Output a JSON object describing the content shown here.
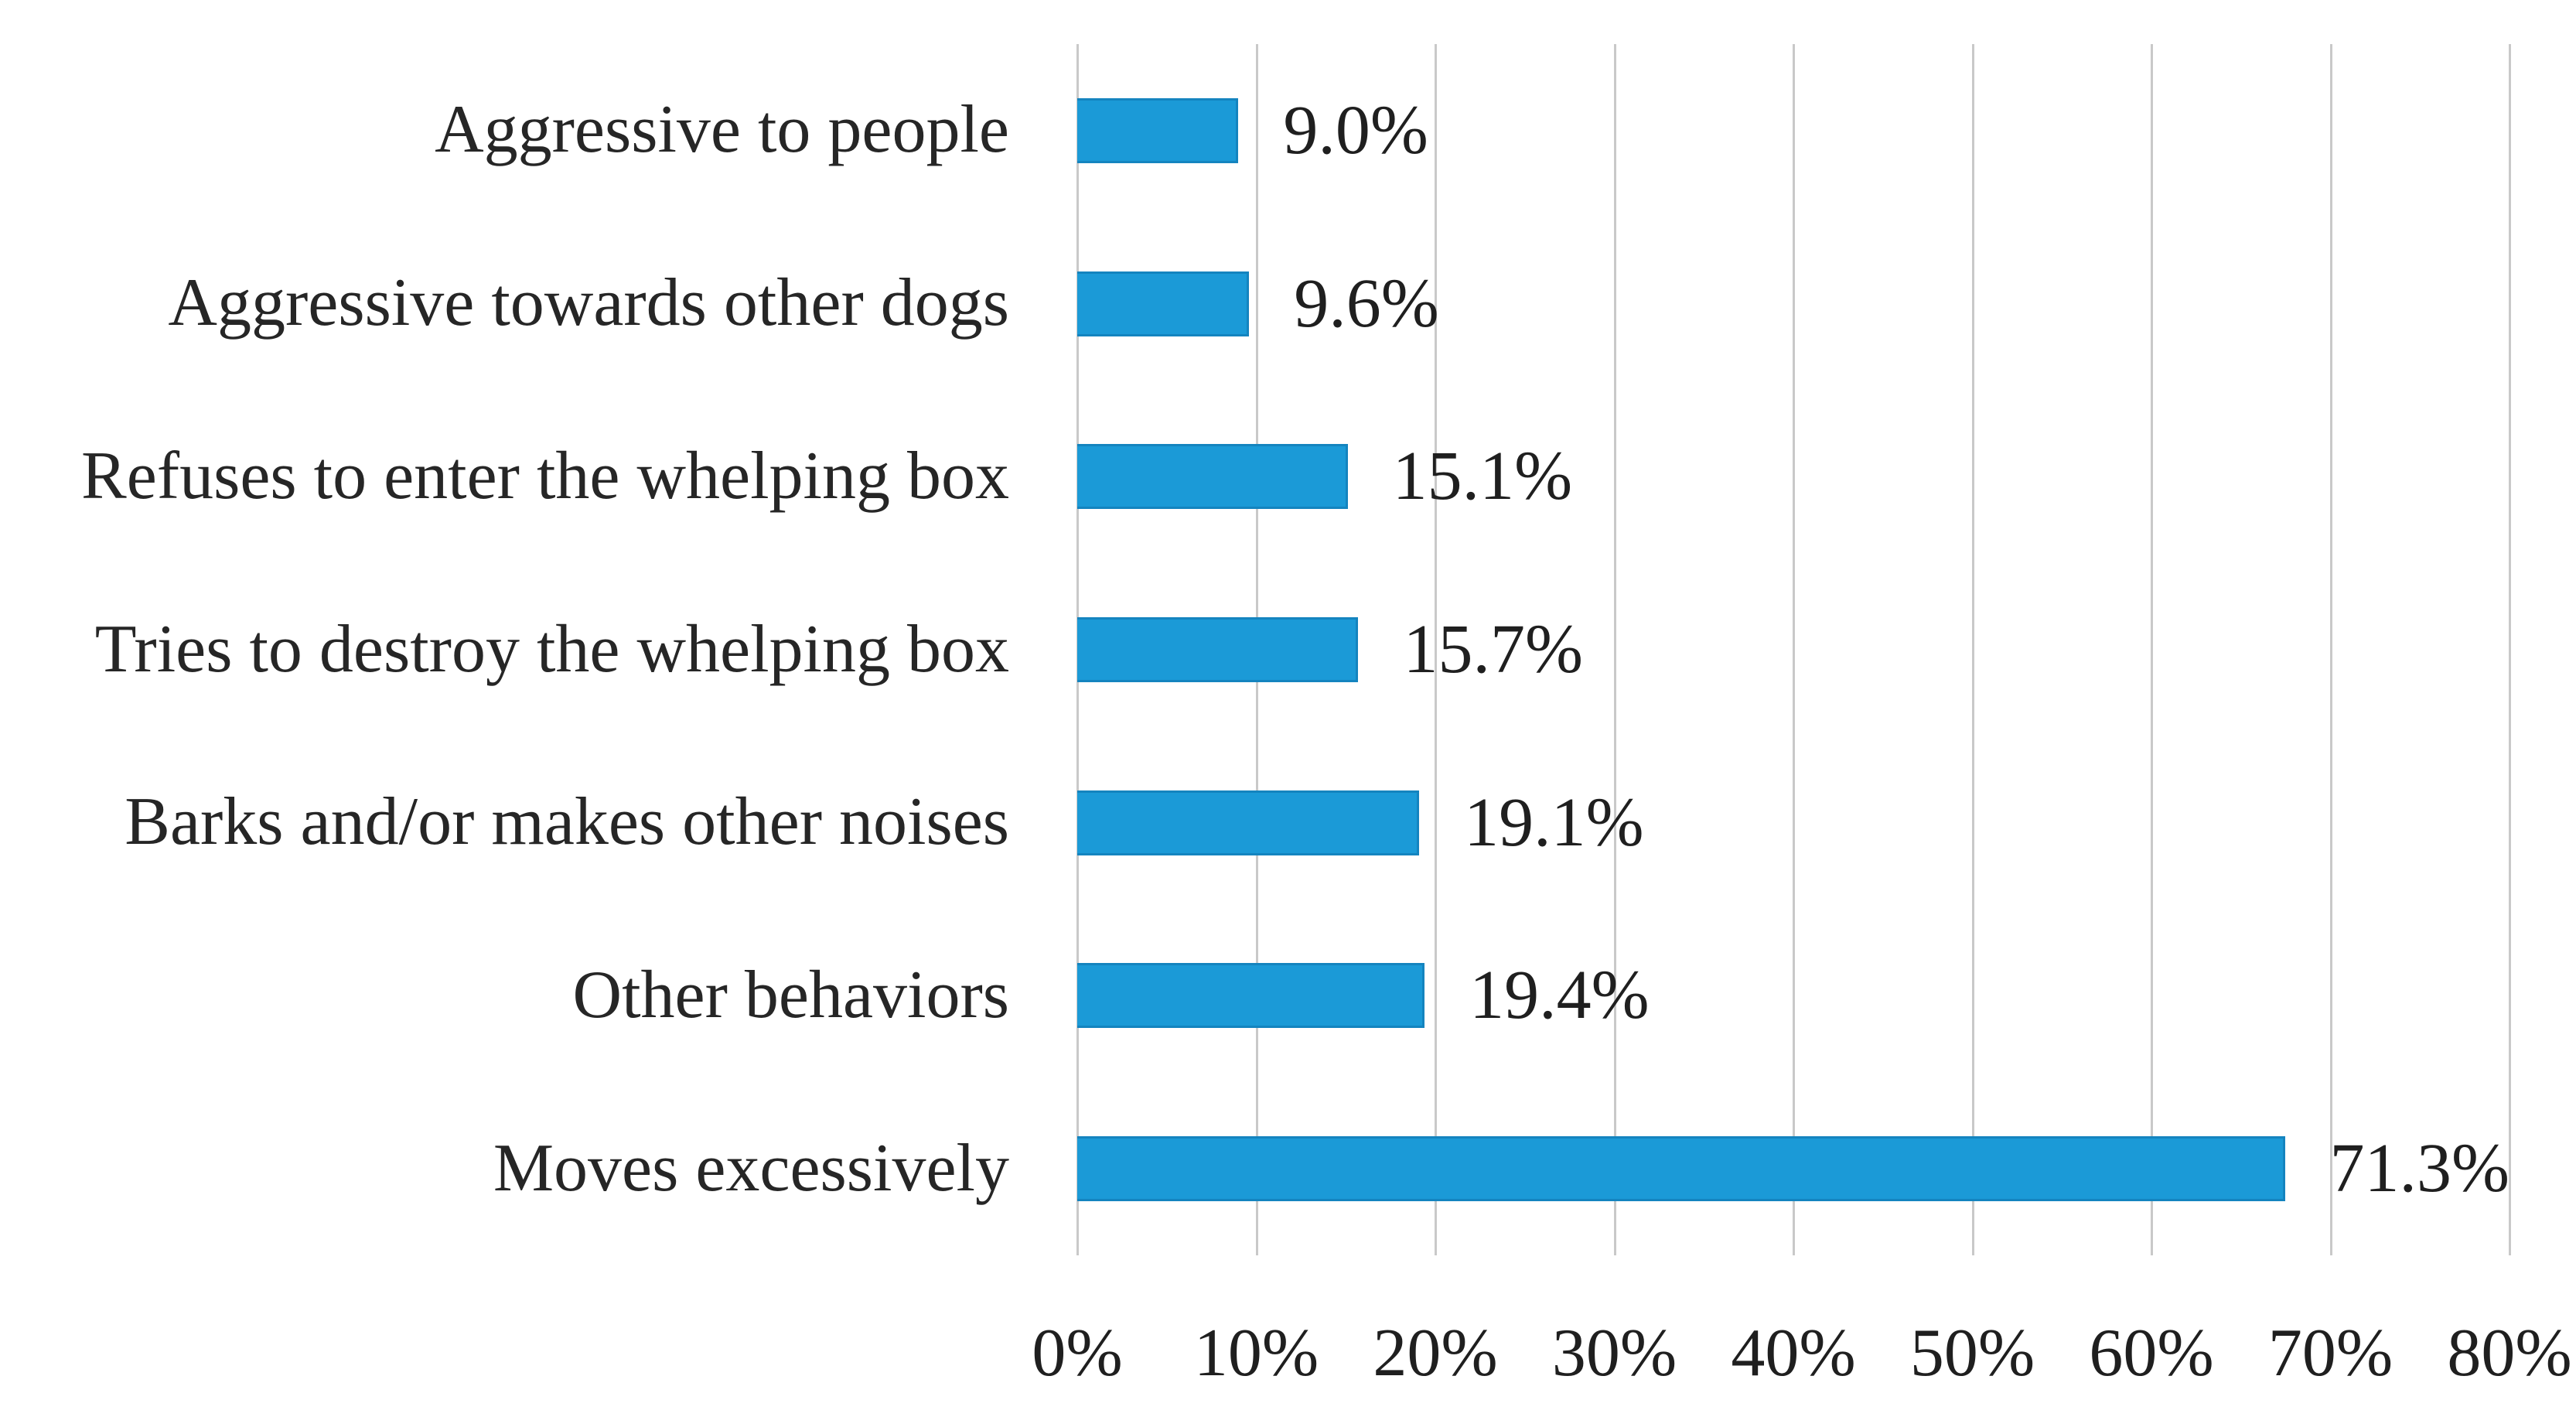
{
  "chart_data": {
    "type": "bar",
    "orientation": "horizontal",
    "categories": [
      "Aggressive to people",
      "Aggressive towards other dogs",
      "Refuses to enter the whelping box",
      "Tries to destroy the whelping box",
      "Barks and/or makes other noises",
      "Other behaviors",
      "Moves excessively"
    ],
    "values": [
      9.0,
      9.6,
      15.1,
      15.7,
      19.1,
      19.4,
      71.3
    ],
    "value_labels": [
      "9.0%",
      "9.6%",
      "15.1%",
      "15.7%",
      "19.1%",
      "19.4%",
      "71.3%"
    ],
    "x_tick_labels": [
      "0%",
      "10%",
      "20%",
      "30%",
      "40%",
      "50%",
      "60%",
      "70%",
      "80%"
    ],
    "xlim": [
      0,
      80
    ],
    "grid": "vertical-gridlines-on",
    "legend": "none",
    "title": "",
    "xlabel": "",
    "ylabel": "",
    "bar_color": "#1b9ad7",
    "bar_border_color": "#1484bf",
    "gridline_color": "#c9c9c9",
    "text_color": "#222222",
    "background_color": "#ffffff"
  }
}
